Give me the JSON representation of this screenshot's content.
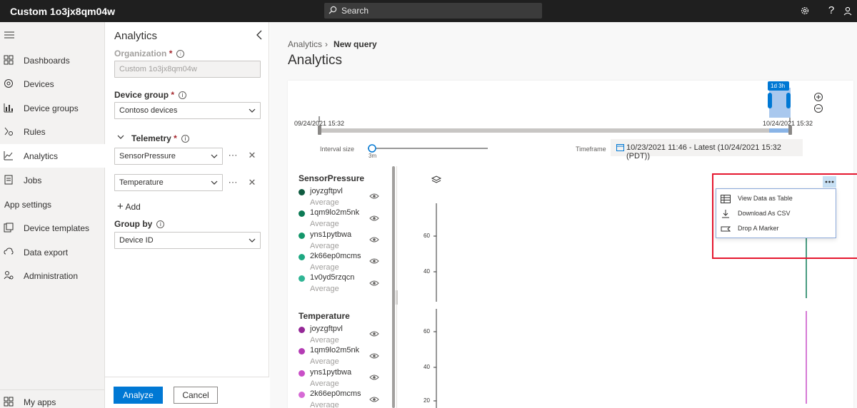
{
  "app": {
    "title": "Custom 1o3jx8qm04w"
  },
  "search": {
    "placeholder": "Search"
  },
  "nav": {
    "items": [
      {
        "label": "Dashboards",
        "icon": "dashboard-icon"
      },
      {
        "label": "Devices",
        "icon": "devices-icon"
      },
      {
        "label": "Device groups",
        "icon": "device-groups-icon"
      },
      {
        "label": "Rules",
        "icon": "rules-icon"
      },
      {
        "label": "Analytics",
        "icon": "analytics-icon",
        "active": true
      },
      {
        "label": "Jobs",
        "icon": "jobs-icon"
      }
    ],
    "section_label": "App settings",
    "settings_items": [
      {
        "label": "Device templates",
        "icon": "device-templates-icon"
      },
      {
        "label": "Data export",
        "icon": "data-export-icon"
      },
      {
        "label": "Administration",
        "icon": "administration-icon"
      }
    ],
    "bottom_item": {
      "label": "My apps",
      "icon": "my-apps-icon"
    }
  },
  "panel": {
    "title": "Analytics",
    "organization_label": "Organization",
    "organization_value": "Custom 1o3jx8qm04w",
    "device_group_label": "Device group",
    "device_group_value": "Contoso devices",
    "telemetry_label": "Telemetry",
    "telemetry_items": [
      "SensorPressure",
      "Temperature"
    ],
    "add_label": "Add",
    "group_by_label": "Group by",
    "group_by_value": "Device ID",
    "required_mark": "*",
    "analyze_label": "Analyze",
    "cancel_label": "Cancel"
  },
  "breadcrumb": {
    "parent": "Analytics",
    "current": "New query"
  },
  "page_title": "Analytics",
  "timeline": {
    "start": "09/24/2021 15:32",
    "end": "10/24/2021 15:32",
    "handle_label": "1d 3h",
    "interval_label": "Interval size",
    "interval_value": "3m",
    "timeframe_label": "Timeframe",
    "timeframe_value": "10/23/2021 11:46 - Latest (10/24/2021 15:32 (PDT))"
  },
  "legend": {
    "groups": [
      {
        "title": "SensorPressure",
        "entries": [
          {
            "name": "joyzgftpvl",
            "agg": "Average",
            "color": "#0f5b40"
          },
          {
            "name": "1qm9lo2m5nk",
            "agg": "Average",
            "color": "#0c7a55"
          },
          {
            "name": "yns1pytbwa",
            "agg": "Average",
            "color": "#14966a"
          },
          {
            "name": "2k66ep0mcms",
            "agg": "Average",
            "color": "#1ea882"
          },
          {
            "name": "1v0yd5rzqcn",
            "agg": "Average",
            "color": "#2fb594"
          }
        ]
      },
      {
        "title": "Temperature",
        "entries": [
          {
            "name": "joyzgftpvl",
            "agg": "Average",
            "color": "#952897"
          },
          {
            "name": "1qm9lo2m5nk",
            "agg": "Average",
            "color": "#b43cb4"
          },
          {
            "name": "yns1pytbwa",
            "agg": "Average",
            "color": "#c94fc7"
          },
          {
            "name": "2k66ep0mcms",
            "agg": "Average",
            "color": "#d66ad5"
          }
        ]
      }
    ]
  },
  "context_menu": {
    "items": [
      {
        "label": "View Data as Table",
        "icon": "table-icon"
      },
      {
        "label": "Download As CSV",
        "icon": "download-icon"
      },
      {
        "label": "Drop A Marker",
        "icon": "marker-icon"
      }
    ]
  },
  "chart": {
    "pressure_ticks": [
      "60",
      "40"
    ],
    "temperature_ticks": [
      "60",
      "40",
      "20"
    ],
    "accent": "#0078d4",
    "highlight": "#e5172f"
  }
}
